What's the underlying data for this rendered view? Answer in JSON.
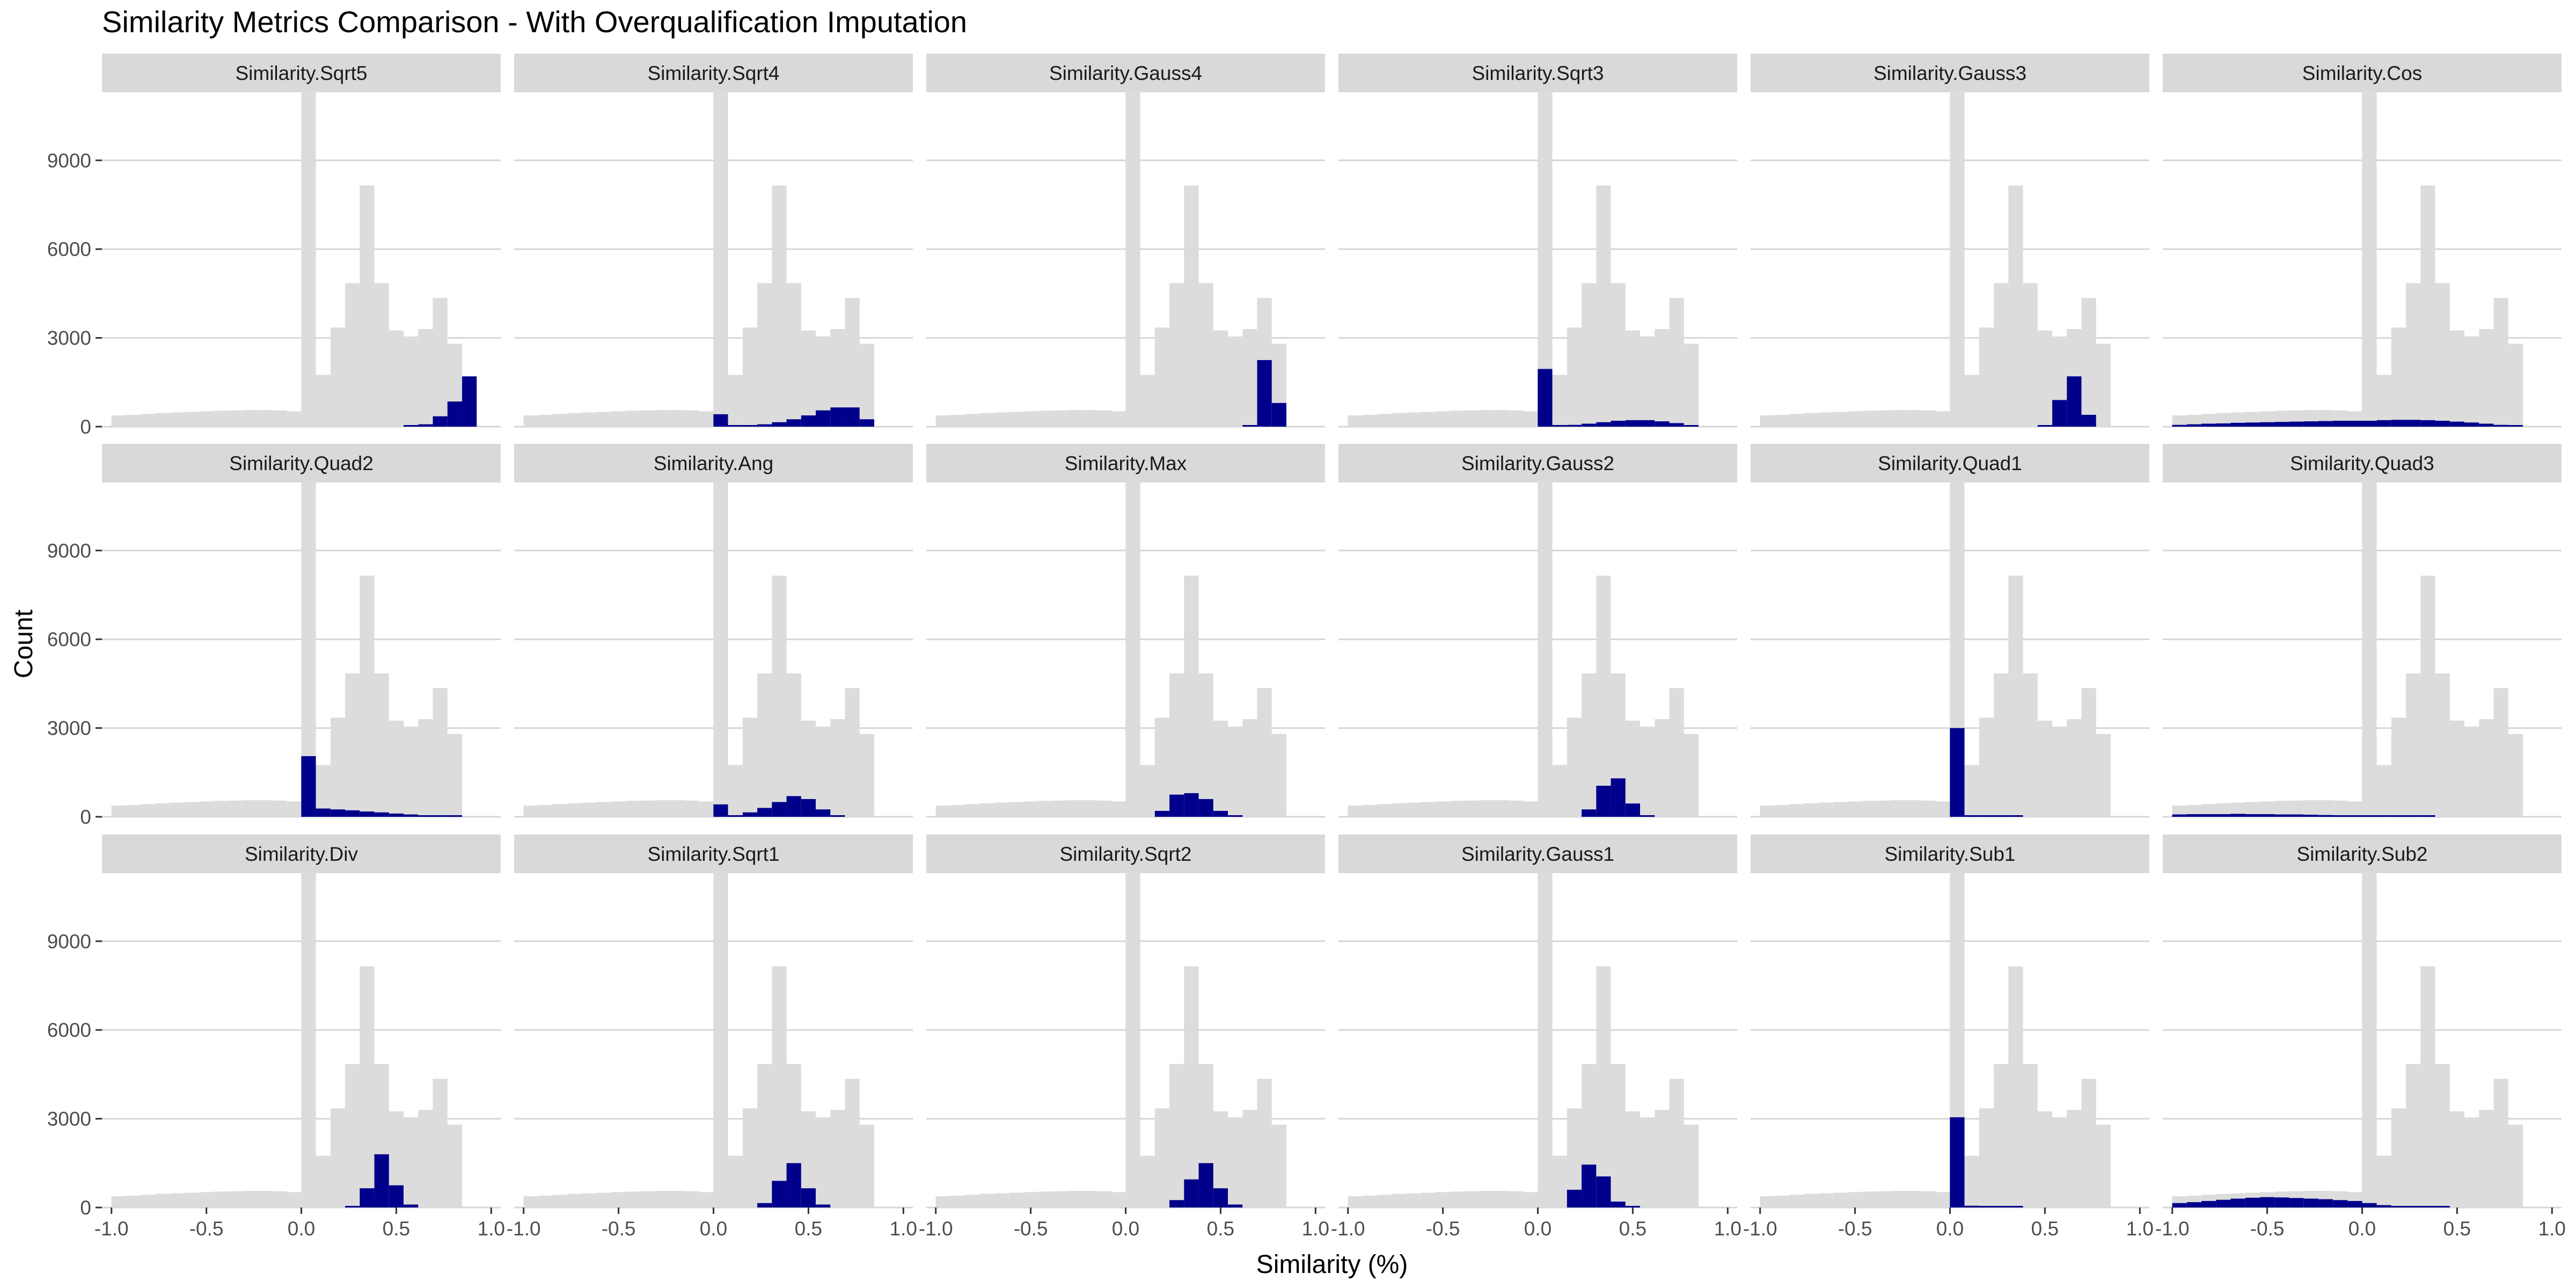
{
  "title": "Similarity Metrics Comparison - With Overqualification Imputation",
  "colors": {
    "background_hist": "#dcdcdc",
    "highlight_hist": "#00008b",
    "strip": "#d9d9d9",
    "grid": "#d6d6d6"
  },
  "chart_data": {
    "type": "bar",
    "layout": "facet_wrap 3 rows x 6 columns, shared axes",
    "xlabel": "Similarity (%)",
    "ylabel": "Count",
    "xlim": [
      -1.05,
      1.05
    ],
    "ylim": [
      0,
      11300
    ],
    "x_ticks": [
      -1.0,
      -0.5,
      0.0,
      0.5,
      1.0
    ],
    "x_tick_labels": [
      "-1.0",
      "-0.5",
      "0.0",
      "0.5",
      "1.0"
    ],
    "y_ticks": [
      0,
      3000,
      6000,
      9000
    ],
    "y_tick_labels": [
      "0",
      "3000",
      "6000",
      "9000"
    ],
    "bin_width": 0.0769,
    "bin_centers": [
      -0.962,
      -0.885,
      -0.808,
      -0.731,
      -0.654,
      -0.577,
      -0.5,
      -0.423,
      -0.346,
      -0.269,
      -0.192,
      -0.115,
      -0.038,
      0.038,
      0.115,
      0.192,
      0.269,
      0.346,
      0.423,
      0.5,
      0.577,
      0.654,
      0.731,
      0.808,
      0.885
    ],
    "background_series": [
      380,
      400,
      430,
      460,
      480,
      500,
      520,
      540,
      550,
      560,
      560,
      550,
      520,
      11350,
      1750,
      3350,
      4850,
      8150,
      4850,
      3250,
      3050,
      3300,
      4350,
      2800,
      0
    ],
    "panels": [
      {
        "name": "Similarity.Sqrt5",
        "values": [
          0,
          0,
          0,
          0,
          0,
          0,
          0,
          0,
          0,
          0,
          0,
          0,
          0,
          0,
          0,
          0,
          0,
          0,
          0,
          0,
          20,
          80,
          350,
          850,
          1700
        ]
      },
      {
        "name": "Similarity.Sqrt4",
        "values": [
          0,
          0,
          0,
          0,
          0,
          0,
          0,
          0,
          0,
          0,
          0,
          0,
          0,
          420,
          20,
          40,
          80,
          150,
          250,
          380,
          550,
          650,
          650,
          250,
          0
        ]
      },
      {
        "name": "Similarity.Gauss4",
        "values": [
          0,
          0,
          0,
          0,
          0,
          0,
          0,
          0,
          0,
          0,
          0,
          0,
          0,
          0,
          0,
          0,
          0,
          0,
          0,
          0,
          0,
          30,
          2250,
          800,
          0
        ]
      },
      {
        "name": "Similarity.Sqrt3",
        "values": [
          0,
          0,
          0,
          0,
          0,
          0,
          0,
          0,
          0,
          0,
          0,
          0,
          0,
          1950,
          30,
          60,
          100,
          150,
          200,
          220,
          220,
          180,
          120,
          50,
          0
        ]
      },
      {
        "name": "Similarity.Gauss3",
        "values": [
          0,
          0,
          0,
          0,
          0,
          0,
          0,
          0,
          0,
          0,
          0,
          0,
          0,
          0,
          0,
          0,
          0,
          0,
          0,
          30,
          900,
          1700,
          400,
          0,
          0
        ]
      },
      {
        "name": "Similarity.Cos",
        "values": [
          60,
          80,
          100,
          110,
          130,
          140,
          150,
          160,
          170,
          180,
          190,
          200,
          200,
          200,
          220,
          230,
          230,
          220,
          200,
          170,
          140,
          100,
          60,
          30,
          0
        ]
      },
      {
        "name": "Similarity.Quad2",
        "values": [
          0,
          0,
          0,
          0,
          0,
          0,
          0,
          0,
          0,
          0,
          0,
          0,
          0,
          2050,
          280,
          250,
          220,
          180,
          150,
          110,
          80,
          50,
          30,
          10,
          0
        ]
      },
      {
        "name": "Similarity.Ang",
        "values": [
          0,
          0,
          0,
          0,
          0,
          0,
          0,
          0,
          0,
          0,
          0,
          0,
          0,
          420,
          50,
          150,
          300,
          500,
          700,
          600,
          250,
          50,
          0,
          0,
          0
        ]
      },
      {
        "name": "Similarity.Max",
        "values": [
          0,
          0,
          0,
          0,
          0,
          0,
          0,
          0,
          0,
          0,
          0,
          0,
          0,
          0,
          0,
          200,
          750,
          800,
          600,
          200,
          50,
          0,
          0,
          0,
          0
        ]
      },
      {
        "name": "Similarity.Gauss2",
        "values": [
          0,
          0,
          0,
          0,
          0,
          0,
          0,
          0,
          0,
          0,
          0,
          0,
          0,
          0,
          0,
          0,
          250,
          1050,
          1300,
          450,
          50,
          0,
          0,
          0,
          0
        ]
      },
      {
        "name": "Similarity.Quad1",
        "values": [
          0,
          0,
          0,
          0,
          0,
          0,
          0,
          0,
          0,
          0,
          0,
          0,
          0,
          3000,
          30,
          20,
          10,
          10,
          0,
          0,
          0,
          0,
          0,
          0,
          0
        ]
      },
      {
        "name": "Similarity.Quad3",
        "values": [
          80,
          90,
          90,
          90,
          100,
          90,
          90,
          80,
          80,
          70,
          60,
          50,
          40,
          40,
          30,
          20,
          10,
          10,
          0,
          0,
          0,
          0,
          0,
          0,
          0
        ]
      },
      {
        "name": "Similarity.Div",
        "values": [
          0,
          0,
          0,
          0,
          0,
          0,
          0,
          0,
          0,
          0,
          0,
          0,
          0,
          0,
          0,
          0,
          50,
          650,
          1800,
          750,
          100,
          0,
          0,
          0,
          0
        ]
      },
      {
        "name": "Similarity.Sqrt1",
        "values": [
          0,
          0,
          0,
          0,
          0,
          0,
          0,
          0,
          0,
          0,
          0,
          0,
          0,
          0,
          0,
          0,
          150,
          900,
          1500,
          650,
          100,
          0,
          0,
          0,
          0
        ]
      },
      {
        "name": "Similarity.Sqrt2",
        "values": [
          0,
          0,
          0,
          0,
          0,
          0,
          0,
          0,
          0,
          0,
          0,
          0,
          0,
          0,
          0,
          0,
          250,
          950,
          1500,
          650,
          100,
          0,
          0,
          0,
          0
        ]
      },
      {
        "name": "Similarity.Gauss1",
        "values": [
          0,
          0,
          0,
          0,
          0,
          0,
          0,
          0,
          0,
          0,
          0,
          0,
          0,
          0,
          0,
          600,
          1450,
          1050,
          200,
          20,
          0,
          0,
          0,
          0,
          0
        ]
      },
      {
        "name": "Similarity.Sub1",
        "values": [
          0,
          0,
          0,
          0,
          0,
          0,
          0,
          0,
          0,
          0,
          0,
          0,
          0,
          3050,
          60,
          30,
          20,
          10,
          0,
          0,
          0,
          0,
          0,
          0,
          0
        ]
      },
      {
        "name": "Similarity.Sub2",
        "values": [
          150,
          180,
          220,
          260,
          300,
          330,
          350,
          340,
          320,
          300,
          280,
          250,
          220,
          150,
          80,
          50,
          30,
          20,
          10,
          0,
          0,
          0,
          0,
          0,
          0
        ]
      }
    ]
  }
}
